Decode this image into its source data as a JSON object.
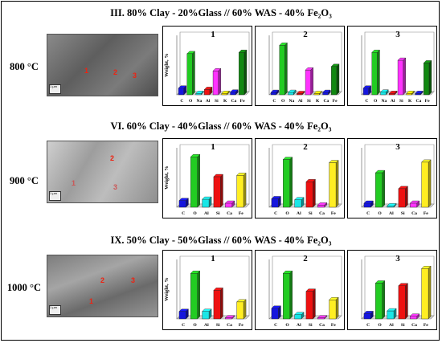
{
  "sections": [
    {
      "title": "III.  80% Clay - 20%Glass // 60% WAS - 40% Fe₂O₃",
      "temperature": "800 °C",
      "sem_points": [
        "1",
        "2",
        "3"
      ],
      "sem_scale": "1 µm"
    },
    {
      "title": "VI. 60% Clay - 40%Glass // 60% WAS - 40% Fe₂O₃",
      "temperature": "900 °C",
      "sem_points": [
        "1",
        "2",
        "3"
      ],
      "sem_scale": "1 µm"
    },
    {
      "title": "IX.  50% Clay - 50%Glass // 60% WAS - 40% Fe₂O₃",
      "temperature": "1000 °C",
      "sem_points": [
        "1",
        "2",
        "3"
      ],
      "sem_scale": "1 µm"
    }
  ],
  "colors": {
    "C": "#1515dd",
    "O": "#22cc22",
    "Na": "#19e6e6",
    "Al": "#19e6e6",
    "Si": "#ee1111",
    "K": "#ffe600",
    "Si_pink": "#ff33ff",
    "Ca": "#ff33ff",
    "Fe": "#118811",
    "Fe_yellow": "#ffee22"
  },
  "chart_data": [
    {
      "type": "bar",
      "section": 0,
      "panel": "1",
      "categories": [
        "C",
        "O",
        "Na",
        "Al",
        "Si",
        "K",
        "Ca",
        "Fe"
      ],
      "values": [
        5,
        31,
        1,
        4,
        18,
        1,
        2,
        32
      ],
      "palette": [
        "C",
        "O",
        "Na",
        "Si",
        "Si_pink",
        "K",
        "C",
        "Fe"
      ],
      "ylabel": "Weight, %",
      "ylim": [
        0,
        40
      ]
    },
    {
      "type": "bar",
      "section": 0,
      "panel": "2",
      "categories": [
        "C",
        "O",
        "Na",
        "Al",
        "Si",
        "K",
        "Ca",
        "Fe"
      ],
      "values": [
        2,
        42,
        2,
        1,
        21,
        1,
        2,
        24
      ],
      "palette": [
        "C",
        "O",
        "Na",
        "Si",
        "Si_pink",
        "K",
        "C",
        "Fe"
      ],
      "ylabel": "",
      "ylim": [
        0,
        45
      ]
    },
    {
      "type": "bar",
      "section": 0,
      "panel": "3",
      "categories": [
        "C",
        "O",
        "Na",
        "Al",
        "Si",
        "K",
        "Ca",
        "Fe"
      ],
      "values": [
        5,
        32,
        2,
        1,
        26,
        1,
        1,
        24
      ],
      "palette": [
        "C",
        "O",
        "Na",
        "Si",
        "Si_pink",
        "K",
        "C",
        "Fe"
      ],
      "ylabel": "",
      "ylim": [
        0,
        40
      ]
    },
    {
      "type": "bar",
      "section": 1,
      "panel": "1",
      "categories": [
        "C",
        "O",
        "Al",
        "Si",
        "Ca",
        "Fe"
      ],
      "values": [
        5,
        38,
        6,
        23,
        3,
        24
      ],
      "palette": [
        "C",
        "O",
        "Al",
        "Si",
        "Ca",
        "Fe_yellow"
      ],
      "ylabel": "Weight, %",
      "ylim": [
        0,
        40
      ]
    },
    {
      "type": "bar",
      "section": 1,
      "panel": "2",
      "categories": [
        "C",
        "O",
        "Al",
        "Si",
        "Ca",
        "Fe"
      ],
      "values": [
        8,
        45,
        7,
        24,
        2,
        42
      ],
      "palette": [
        "C",
        "O",
        "Al",
        "Si",
        "Ca",
        "Fe_yellow"
      ],
      "ylabel": "",
      "ylim": [
        0,
        50
      ]
    },
    {
      "type": "bar",
      "section": 1,
      "panel": "3",
      "categories": [
        "C",
        "O",
        "Al",
        "Si",
        "Ca",
        "Fe"
      ],
      "values": [
        3,
        26,
        1,
        14,
        3,
        34
      ],
      "palette": [
        "C",
        "O",
        "Al",
        "Si",
        "Ca",
        "Fe_yellow"
      ],
      "ylabel": "",
      "ylim": [
        0,
        40
      ]
    },
    {
      "type": "bar",
      "section": 2,
      "panel": "1",
      "categories": [
        "C",
        "O",
        "Al",
        "Si",
        "Ca",
        "Fe"
      ],
      "values": [
        7,
        43,
        7,
        27,
        1,
        16
      ],
      "palette": [
        "C",
        "O",
        "Al",
        "Si",
        "Ca",
        "Fe_yellow"
      ],
      "ylabel": "Weight, %",
      "ylim": [
        0,
        50
      ]
    },
    {
      "type": "bar",
      "section": 2,
      "panel": "2",
      "categories": [
        "C",
        "O",
        "Al",
        "Si",
        "Ca",
        "Fe"
      ],
      "values": [
        10,
        43,
        4,
        26,
        1,
        18
      ],
      "palette": [
        "C",
        "O",
        "Al",
        "Si",
        "Ca",
        "Fe_yellow"
      ],
      "ylabel": "",
      "ylim": [
        0,
        50
      ]
    },
    {
      "type": "bar",
      "section": 2,
      "panel": "3",
      "categories": [
        "C",
        "O",
        "Al",
        "Si",
        "Ca",
        "Fe"
      ],
      "values": [
        4,
        27,
        6,
        25,
        2,
        38
      ],
      "palette": [
        "C",
        "O",
        "Al",
        "Si",
        "Ca",
        "Fe_yellow"
      ],
      "ylabel": "",
      "ylim": [
        0,
        40
      ]
    }
  ]
}
